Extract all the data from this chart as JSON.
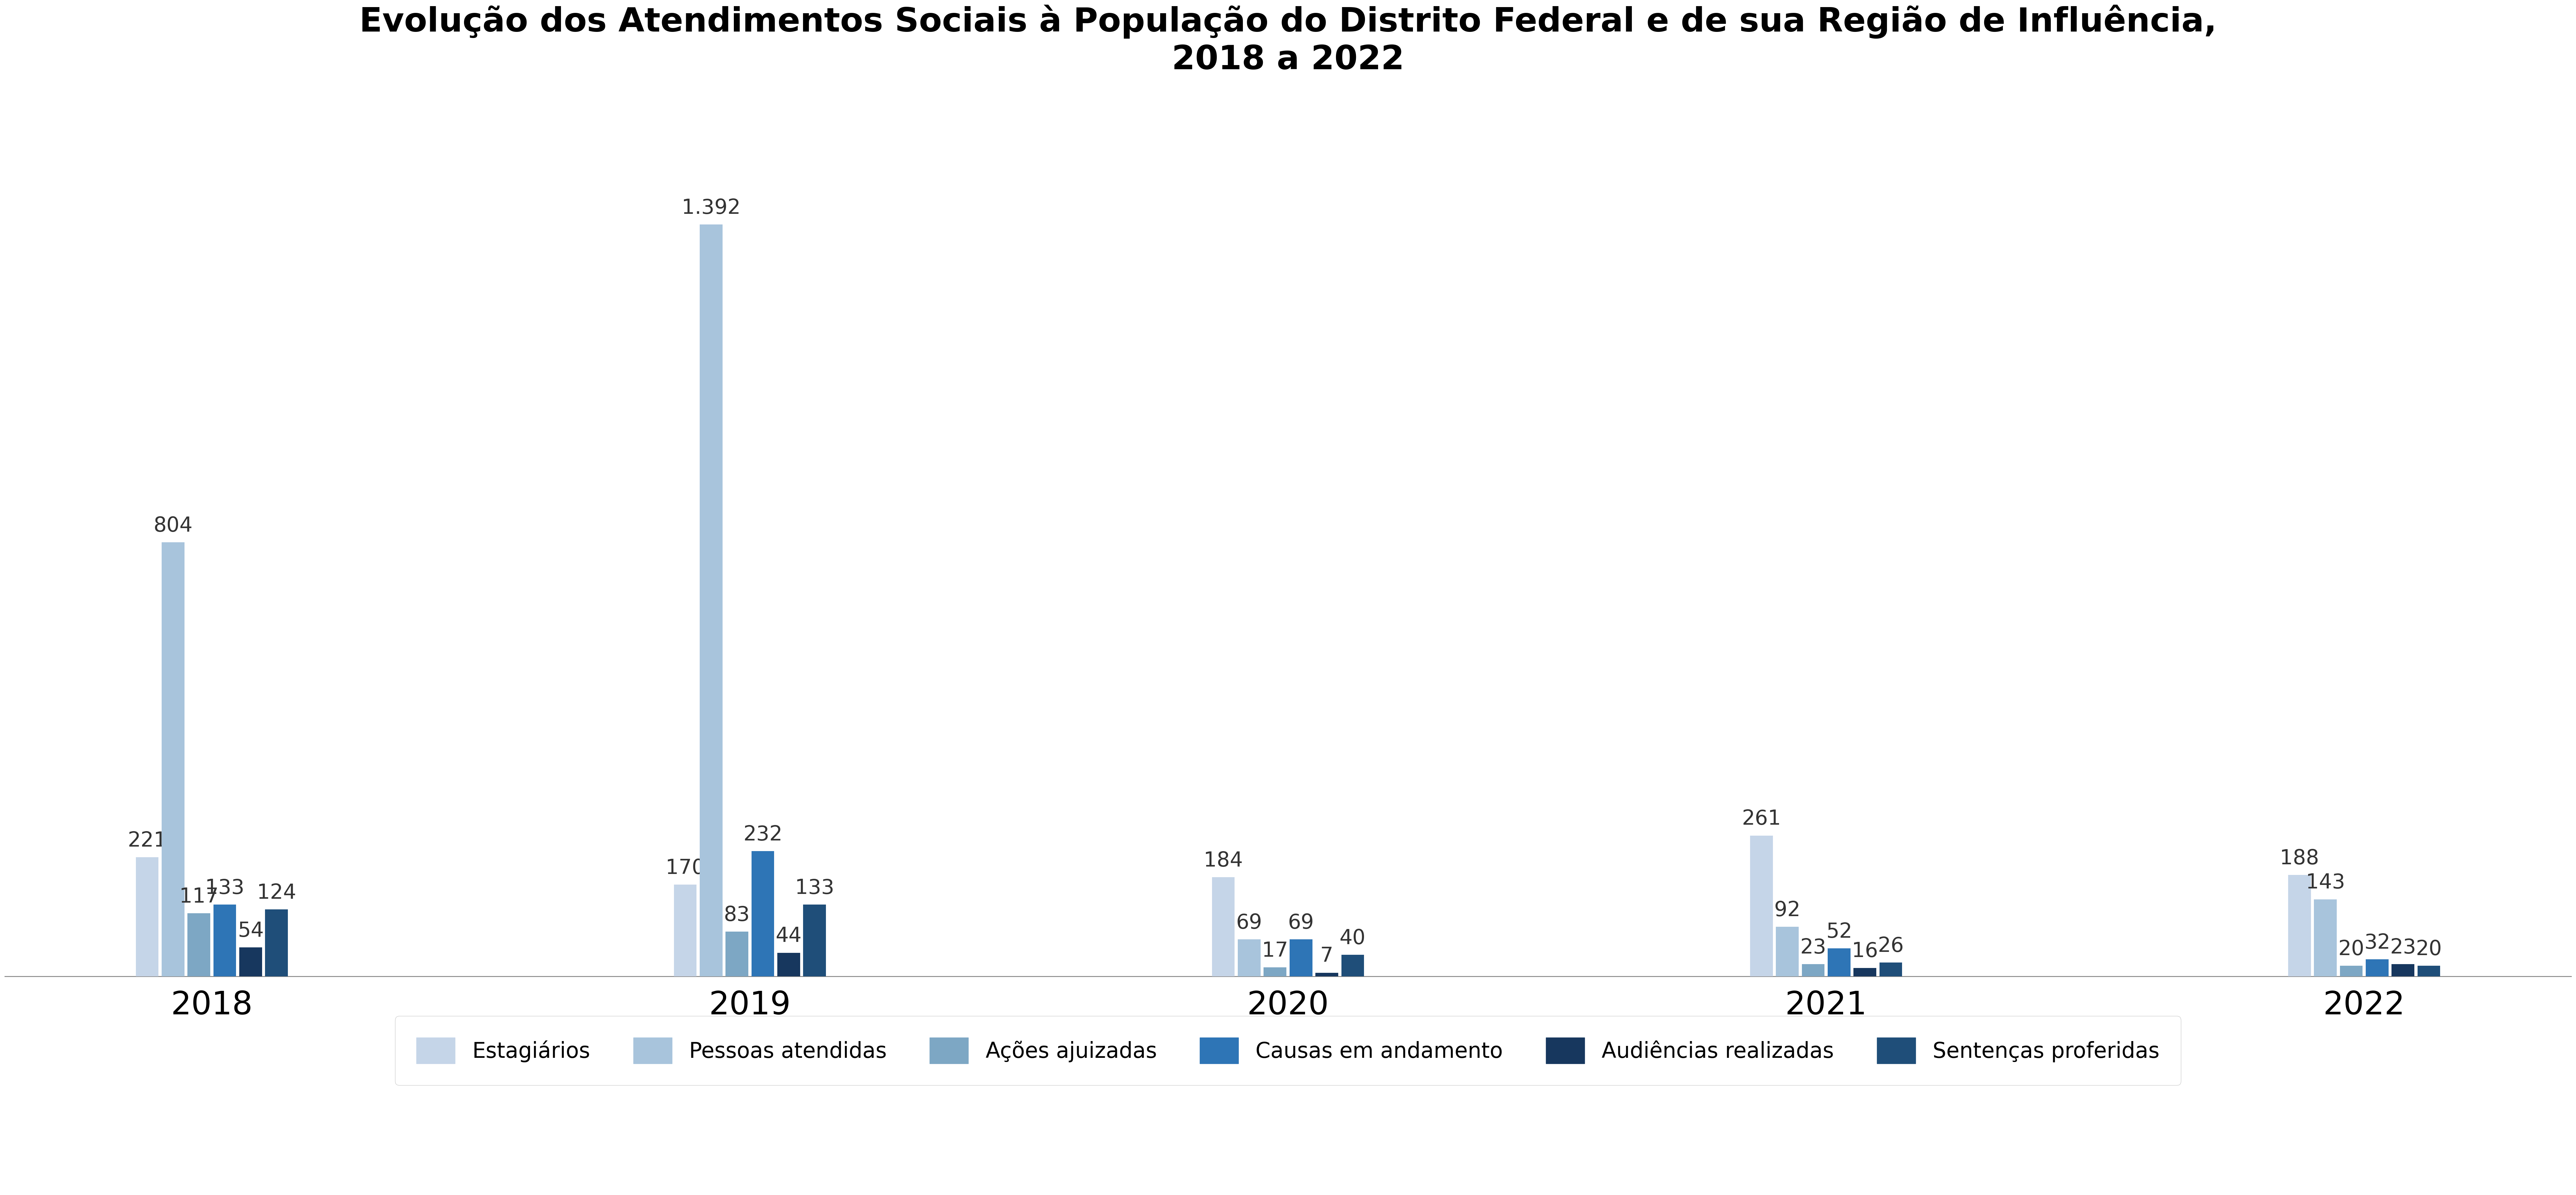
{
  "title": "Evolução dos Atendimentos Sociais à População do Distrito Federal e de sua Região de Influência,\n2018 a 2022",
  "years": [
    "2018",
    "2019",
    "2020",
    "2021",
    "2022"
  ],
  "series": {
    "Estagiários": [
      221,
      170,
      184,
      261,
      188
    ],
    "Pessoas atendidas": [
      804,
      1392,
      69,
      92,
      143
    ],
    "Ações ajuizadas": [
      117,
      83,
      17,
      23,
      20
    ],
    "Causas em andamento": [
      133,
      232,
      69,
      52,
      32
    ],
    "Audiências realizadas": [
      54,
      44,
      7,
      16,
      23
    ],
    "Sentenças proferidas": [
      124,
      133,
      40,
      26,
      20
    ]
  },
  "colors": {
    "Estagiários": "#c5d5e8",
    "Pessoas atendidas": "#a8c4dc",
    "Ações ajuizadas": "#7da7c4",
    "Causas em andamento": "#2e75b6",
    "Audiências realizadas": "#17375e",
    "Sentenças proferidas": "#1f4e79"
  },
  "legend_labels": [
    "Estagiários",
    "Pessoas atendidas",
    "Ações ajuizadas",
    "Causas em andamento",
    "Audiências realizadas",
    "Sentenças proferidas"
  ],
  "annotations": {
    "Estagiários": [
      "221",
      "170",
      "184",
      "261",
      "188"
    ],
    "Pessoas atendidas": [
      "804",
      "1.392",
      "69",
      "92",
      "143"
    ],
    "Ações ajuizadas": [
      "117",
      "83",
      "17",
      "23",
      "20"
    ],
    "Causas em andamento": [
      "133",
      "232",
      "69",
      "52",
      "32"
    ],
    "Audiências realizadas": [
      "54",
      "44",
      "7",
      "16",
      "23"
    ],
    "Sentenças proferidas": [
      "124",
      "133",
      "40",
      "26",
      "20"
    ]
  },
  "background_color": "#ffffff",
  "ylim": [
    0,
    1580
  ],
  "title_fontsize": 75,
  "tick_fontsize": 70,
  "legend_fontsize": 48,
  "annotation_fontsize": 46,
  "year_label_fontsize": 72
}
